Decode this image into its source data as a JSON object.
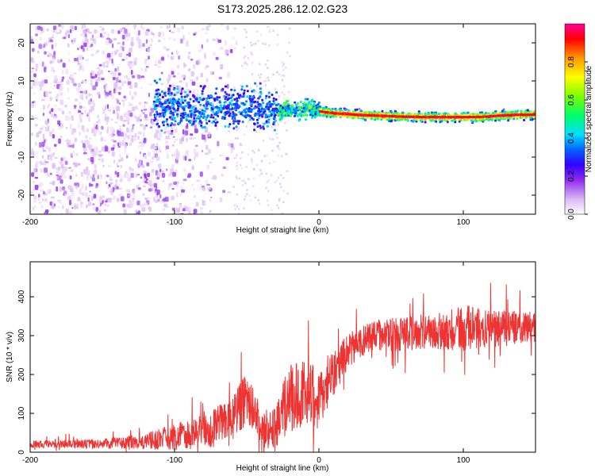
{
  "title": "S173.2025.286.12.02.G23",
  "chart_data": [
    {
      "type": "heatmap",
      "name": "spectrogram",
      "title": "S173.2025.286.12.02.G23",
      "xlabel": "Height of straight line (km)",
      "ylabel": "Frequency (Hz)",
      "xlim": [
        -200,
        150
      ],
      "ylim": [
        -25,
        25
      ],
      "xticks": [
        -200,
        -100,
        0,
        100
      ],
      "yticks": [
        -20,
        -10,
        0,
        10,
        20
      ],
      "colorbar": {
        "label": "Normalized spectral amplitude",
        "range": [
          0,
          1
        ],
        "ticks": [
          0.0,
          0.2,
          0.4,
          0.6,
          0.8
        ],
        "colors": [
          "#ffffff",
          "#d9b8f5",
          "#8f2bf0",
          "#3300ff",
          "#0066ff",
          "#00e0ff",
          "#00ff66",
          "#7dff00",
          "#ffff00",
          "#ff9900",
          "#ff0000",
          "#ff0099"
        ]
      },
      "ridge": {
        "x": [
          -110,
          -90,
          -70,
          -50,
          -35,
          -20,
          -10,
          0,
          10,
          30,
          50,
          70,
          90,
          110,
          130,
          150
        ],
        "freq": [
          3,
          2.5,
          3,
          3.5,
          2,
          2.3,
          2.5,
          2,
          1.5,
          1,
          0.7,
          0.5,
          0.5,
          0.5,
          1,
          1.2
        ]
      }
    },
    {
      "type": "line",
      "name": "snr",
      "xlabel": "Height of straight line (km)",
      "ylabel": "SNR (10 * v/v)",
      "xlim": [
        -200,
        150
      ],
      "ylim": [
        0,
        490
      ],
      "xticks": [
        -200,
        -100,
        0,
        100
      ],
      "yticks": [
        0,
        100,
        200,
        300,
        400
      ],
      "color": "#ee3333",
      "envelope": {
        "x": [
          -200,
          -150,
          -120,
          -100,
          -80,
          -60,
          -50,
          -40,
          -30,
          -20,
          -10,
          0,
          10,
          20,
          30,
          40,
          60,
          80,
          100,
          120,
          150
        ],
        "mean": [
          20,
          22,
          28,
          40,
          55,
          80,
          140,
          60,
          60,
          140,
          150,
          140,
          200,
          260,
          285,
          300,
          305,
          310,
          320,
          320,
          320
        ],
        "spread": [
          10,
          12,
          20,
          35,
          45,
          60,
          70,
          45,
          60,
          90,
          90,
          80,
          60,
          45,
          40,
          40,
          45,
          45,
          60,
          50,
          40
        ]
      }
    }
  ]
}
